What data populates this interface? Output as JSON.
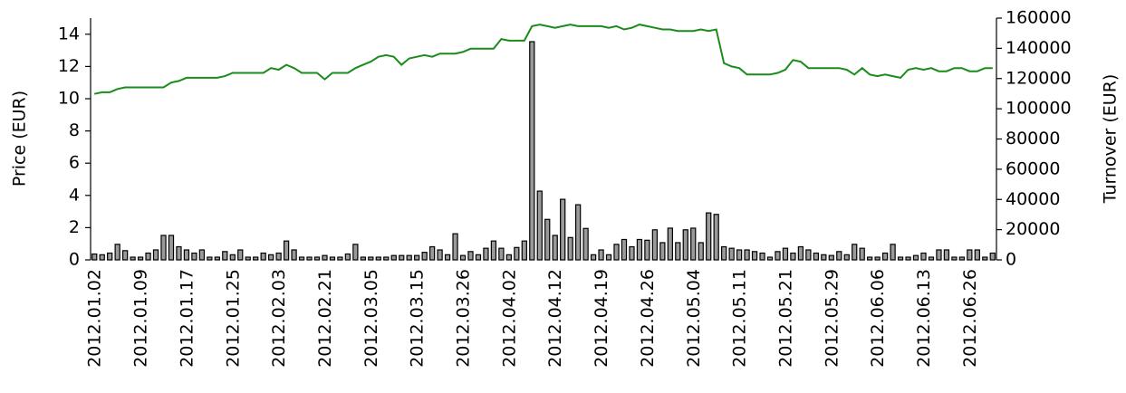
{
  "chart_data": {
    "type": "combo",
    "ylabel": "Price (EUR)",
    "y2label": "Turnover (EUR)",
    "categories": [
      "2012.01.02",
      null,
      null,
      null,
      null,
      null,
      "2012.01.09",
      null,
      null,
      null,
      null,
      null,
      "2012.01.17",
      null,
      null,
      null,
      null,
      null,
      "2012.01.25",
      null,
      null,
      null,
      null,
      null,
      "2012.02.03",
      null,
      null,
      null,
      null,
      null,
      "2012.02.21",
      null,
      null,
      null,
      null,
      null,
      "2012.03.05",
      null,
      null,
      null,
      null,
      null,
      "2012.03.15",
      null,
      null,
      null,
      null,
      null,
      "2012.03.26",
      null,
      null,
      null,
      null,
      null,
      "2012.04.02",
      null,
      null,
      null,
      null,
      null,
      "2012.04.12",
      null,
      null,
      null,
      null,
      null,
      "2012.04.19",
      null,
      null,
      null,
      null,
      null,
      "2012.04.26",
      null,
      null,
      null,
      null,
      null,
      "2012.05.04",
      null,
      null,
      null,
      null,
      null,
      "2012.05.11",
      null,
      null,
      null,
      null,
      null,
      "2012.05.21",
      null,
      null,
      null,
      null,
      null,
      "2012.05.29",
      null,
      null,
      null,
      null,
      null,
      "2012.06.06",
      null,
      null,
      null,
      null,
      null,
      "2012.06.13",
      null,
      null,
      null,
      null,
      null,
      "2012.06.26",
      null,
      null,
      null
    ],
    "series": [
      {
        "type": "bar",
        "axis": "y2",
        "color": "#9a9a9a",
        "values": [
          2100,
          1600,
          2700,
          8500,
          4300,
          0,
          0,
          2700,
          4800,
          14400,
          14400,
          6900,
          4800,
          2700,
          4800,
          0,
          0,
          3700,
          1600,
          4800,
          0,
          0,
          2700,
          1600,
          2700,
          10700,
          4800,
          0,
          0,
          0,
          1100,
          0,
          0,
          2100,
          8500,
          0,
          0,
          0,
          0,
          1100,
          1100,
          1100,
          1100,
          3200,
          6900,
          4800,
          1600,
          15500,
          1100,
          3700,
          1600,
          5900,
          10700,
          5900,
          1600,
          6400,
          10700,
          142600,
          43700,
          25000,
          14400,
          38300,
          13000,
          34700,
          19000,
          1600,
          4800,
          1600,
          8500,
          11700,
          6900,
          11700,
          11200,
          18100,
          9600,
          19200,
          9600,
          18100,
          19200,
          9600,
          29300,
          28300,
          6900,
          5900,
          4800,
          4800,
          3700,
          2700,
          0,
          3700,
          5900,
          2700,
          6900,
          4800,
          2700,
          1600,
          1100,
          3700,
          1600,
          8500,
          5900,
          0,
          0,
          2700,
          8500,
          0,
          0,
          1100,
          2700,
          0,
          4800,
          4800,
          0,
          0,
          4800,
          4800,
          0,
          2700
        ]
      },
      {
        "type": "line",
        "color": "#1a8c1a",
        "values": [
          10.3,
          10.4,
          10.4,
          10.6,
          10.7,
          10.7,
          10.7,
          10.7,
          10.7,
          10.7,
          11.0,
          11.1,
          11.3,
          11.3,
          11.3,
          11.3,
          11.3,
          11.4,
          11.6,
          11.6,
          11.6,
          11.6,
          11.6,
          11.9,
          11.8,
          12.1,
          11.9,
          11.6,
          11.6,
          11.6,
          11.2,
          11.6,
          11.6,
          11.6,
          11.9,
          12.1,
          12.3,
          12.6,
          12.7,
          12.6,
          12.1,
          12.5,
          12.6,
          12.7,
          12.6,
          12.8,
          12.8,
          12.8,
          12.9,
          13.1,
          13.1,
          13.1,
          13.1,
          13.7,
          13.6,
          13.6,
          13.6,
          14.5,
          14.6,
          14.5,
          14.4,
          14.5,
          14.6,
          14.5,
          14.5,
          14.5,
          14.5,
          14.4,
          14.5,
          14.3,
          14.4,
          14.6,
          14.5,
          14.4,
          14.3,
          14.3,
          14.2,
          14.2,
          14.2,
          14.3,
          14.2,
          14.3,
          12.2,
          12.0,
          11.9,
          11.5,
          11.5,
          11.5,
          11.5,
          11.6,
          11.8,
          12.4,
          12.3,
          11.9,
          11.9,
          11.9,
          11.9,
          11.9,
          11.8,
          11.5,
          11.9,
          11.5,
          11.4,
          11.5,
          11.4,
          11.3,
          11.8,
          11.9,
          11.8,
          11.9,
          11.7,
          11.7,
          11.9,
          11.9,
          11.7,
          11.7,
          11.9,
          11.9
        ]
      }
    ],
    "ylim": [
      0,
      15
    ],
    "yticks": [
      0,
      2,
      4,
      6,
      8,
      10,
      12,
      14
    ],
    "y2lim": [
      0,
      160000
    ],
    "y2ticks": [
      0,
      20000,
      40000,
      60000,
      80000,
      100000,
      120000,
      140000,
      160000
    ]
  }
}
